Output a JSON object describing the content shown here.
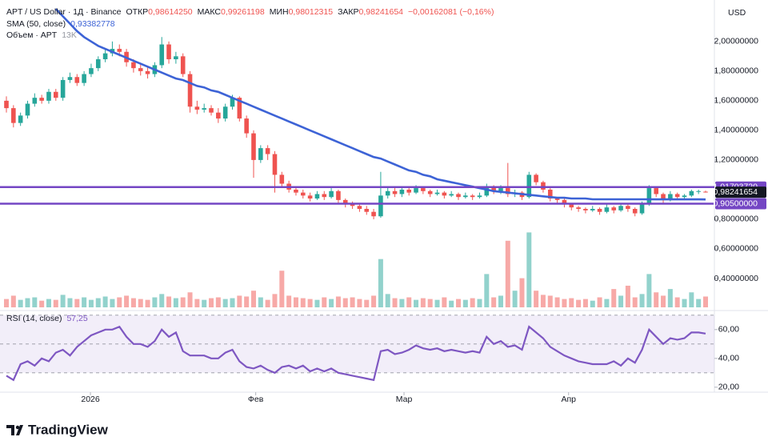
{
  "brand": "TradingView",
  "chart_data": [
    {
      "type": "candlestick",
      "title": "APT / US Dollar · 1Д · Binance",
      "ohlc_labels": [
        {
          "name": "ОТКР",
          "value": "0,98614250"
        },
        {
          "name": "МАКС",
          "value": "0,99261198"
        },
        {
          "name": "МИН",
          "value": "0,98012315"
        },
        {
          "name": "ЗАКР",
          "value": "0,98241654"
        }
      ],
      "change_label": "−0,00162081 (−0,16%)",
      "currency": "USD",
      "up_color": "#26a69a",
      "down_color": "#ef5350",
      "ylim": [
        0.2,
        2.28
      ],
      "yticks": [
        {
          "value": 0.4,
          "label": "0,40000000"
        },
        {
          "value": 0.6,
          "label": "0,60000000"
        },
        {
          "value": 0.8,
          "label": "0,80000000"
        },
        {
          "value": 1.2,
          "label": "1,20000000"
        },
        {
          "value": 1.4,
          "label": "1,40000000"
        },
        {
          "value": 1.6,
          "label": "1,60000000"
        },
        {
          "value": 1.8,
          "label": "1,80000000"
        },
        {
          "value": 2.0,
          "label": "2,00000000"
        }
      ],
      "xticks": [
        {
          "value": 11.9,
          "label": "2026"
        },
        {
          "value": 35.3,
          "label": "Фев"
        },
        {
          "value": 56.3,
          "label": "Мар"
        },
        {
          "value": 79.6,
          "label": "Апр"
        }
      ],
      "open": [
        1.6,
        1.55,
        1.45,
        1.5,
        1.58,
        1.62,
        1.6,
        1.66,
        1.62,
        1.74,
        1.76,
        1.72,
        1.78,
        1.82,
        1.88,
        1.92,
        1.95,
        1.93,
        1.86,
        1.82,
        1.8,
        1.78,
        1.84,
        1.98,
        1.88,
        1.9,
        1.78,
        1.56,
        1.54,
        1.55,
        1.52,
        1.48,
        1.56,
        1.62,
        1.48,
        1.38,
        1.2,
        1.28,
        1.24,
        1.1,
        1.04,
        1.0,
        0.98,
        0.96,
        0.94,
        0.97,
        0.95,
        0.99,
        0.93,
        0.9,
        0.89,
        0.87,
        0.85,
        0.82,
        0.96,
        0.99,
        0.97,
        1.0,
        0.98,
        1.01,
        0.99,
        0.97,
        0.98,
        0.96,
        0.97,
        0.95,
        0.96,
        0.95,
        0.96,
        1.02,
        0.99,
        1.01,
        0.97,
        0.98,
        0.95,
        1.1,
        1.05,
        1.0,
        0.94,
        0.93,
        0.9,
        0.88,
        0.87,
        0.86,
        0.87,
        0.85,
        0.88,
        0.86,
        0.89,
        0.87,
        0.84,
        0.9,
        1.01,
        0.97,
        0.93,
        0.97,
        0.95,
        0.96,
        0.99,
        0.9861425
      ],
      "high": [
        1.63,
        1.57,
        1.52,
        1.6,
        1.65,
        1.64,
        1.68,
        1.68,
        1.76,
        1.79,
        1.78,
        1.8,
        1.85,
        1.9,
        1.95,
        2.0,
        1.98,
        1.95,
        1.88,
        1.85,
        1.83,
        1.86,
        2.03,
        2.0,
        1.93,
        1.92,
        1.8,
        1.6,
        1.58,
        1.57,
        1.55,
        1.58,
        1.64,
        1.63,
        1.5,
        1.4,
        1.3,
        1.3,
        1.26,
        1.12,
        1.06,
        1.02,
        1.0,
        0.98,
        0.99,
        0.99,
        1.01,
        1.0,
        0.94,
        0.92,
        0.91,
        0.89,
        0.87,
        1.12,
        1.02,
        1.01,
        1.02,
        1.02,
        1.03,
        1.02,
        1.0,
        1.0,
        0.99,
        0.99,
        0.98,
        0.98,
        0.97,
        0.98,
        1.04,
        1.03,
        1.03,
        1.18,
        1.0,
        0.99,
        1.12,
        1.11,
        1.06,
        1.01,
        0.95,
        0.94,
        0.91,
        0.89,
        0.88,
        0.89,
        0.88,
        0.9,
        0.89,
        0.91,
        0.9,
        0.88,
        0.92,
        1.03,
        1.02,
        0.98,
        0.99,
        0.98,
        0.97,
        1.0,
        1.0,
        0.99261198
      ],
      "low": [
        1.52,
        1.42,
        1.43,
        1.48,
        1.56,
        1.58,
        1.58,
        1.6,
        1.6,
        1.72,
        1.7,
        1.7,
        1.76,
        1.8,
        1.86,
        1.9,
        1.9,
        1.83,
        1.79,
        1.77,
        1.75,
        1.76,
        1.82,
        1.85,
        1.85,
        1.76,
        1.52,
        1.51,
        1.52,
        1.5,
        1.45,
        1.46,
        1.54,
        1.46,
        1.35,
        1.08,
        1.18,
        1.2,
        0.98,
        1.02,
        0.98,
        0.96,
        0.94,
        0.92,
        0.93,
        0.93,
        0.94,
        0.91,
        0.88,
        0.87,
        0.85,
        0.83,
        0.8,
        0.81,
        0.94,
        0.95,
        0.95,
        0.96,
        0.97,
        0.97,
        0.95,
        0.96,
        0.94,
        0.95,
        0.93,
        0.94,
        0.93,
        0.94,
        0.95,
        0.97,
        0.97,
        0.95,
        0.95,
        0.93,
        0.94,
        1.03,
        0.98,
        0.92,
        0.91,
        0.88,
        0.86,
        0.85,
        0.84,
        0.85,
        0.83,
        0.84,
        0.84,
        0.85,
        0.85,
        0.82,
        0.83,
        0.89,
        0.95,
        0.91,
        0.92,
        0.93,
        0.94,
        0.95,
        0.97,
        0.98012315
      ],
      "close": [
        1.55,
        1.45,
        1.5,
        1.58,
        1.62,
        1.6,
        1.66,
        1.62,
        1.74,
        1.76,
        1.72,
        1.78,
        1.82,
        1.88,
        1.92,
        1.95,
        1.93,
        1.86,
        1.82,
        1.8,
        1.78,
        1.84,
        1.98,
        1.88,
        1.9,
        1.78,
        1.56,
        1.54,
        1.55,
        1.52,
        1.48,
        1.56,
        1.62,
        1.48,
        1.38,
        1.2,
        1.28,
        1.24,
        1.1,
        1.04,
        1.0,
        0.98,
        0.96,
        0.94,
        0.97,
        0.95,
        0.99,
        0.93,
        0.9,
        0.89,
        0.87,
        0.85,
        0.82,
        0.96,
        0.99,
        0.97,
        1.0,
        0.98,
        1.01,
        0.99,
        0.97,
        0.98,
        0.96,
        0.97,
        0.95,
        0.96,
        0.95,
        0.96,
        1.02,
        0.99,
        1.01,
        0.97,
        0.98,
        0.95,
        1.1,
        1.05,
        1.0,
        0.94,
        0.93,
        0.9,
        0.88,
        0.87,
        0.86,
        0.87,
        0.85,
        0.88,
        0.86,
        0.89,
        0.87,
        0.84,
        0.9,
        1.01,
        0.97,
        0.93,
        0.97,
        0.95,
        0.96,
        0.99,
        0.99,
        0.98241654
      ],
      "sma": {
        "name": "SMA (50, close)",
        "value_label": "0,93382778",
        "color": "#3d63d6",
        "values": [
          null,
          null,
          null,
          null,
          null,
          null,
          null,
          2.22,
          2.17,
          2.12,
          2.07,
          2.03,
          2.0,
          1.97,
          1.95,
          1.93,
          1.91,
          1.89,
          1.87,
          1.85,
          1.83,
          1.81,
          1.79,
          1.77,
          1.75,
          1.74,
          1.72,
          1.7,
          1.69,
          1.67,
          1.66,
          1.64,
          1.62,
          1.6,
          1.58,
          1.56,
          1.54,
          1.52,
          1.5,
          1.48,
          1.46,
          1.44,
          1.42,
          1.4,
          1.38,
          1.36,
          1.34,
          1.32,
          1.3,
          1.28,
          1.26,
          1.24,
          1.22,
          1.21,
          1.19,
          1.17,
          1.15,
          1.13,
          1.12,
          1.1,
          1.09,
          1.07,
          1.06,
          1.05,
          1.04,
          1.03,
          1.02,
          1.01,
          1.0,
          0.99,
          0.985,
          0.98,
          0.975,
          0.97,
          0.965,
          0.96,
          0.955,
          0.95,
          0.945,
          0.945,
          0.94,
          0.94,
          0.94,
          0.935,
          0.935,
          0.935,
          0.935,
          0.935,
          0.935,
          0.935,
          0.935,
          0.935,
          0.934,
          0.934,
          0.934,
          0.934,
          0.934,
          0.934,
          0.934,
          0.93382778
        ]
      },
      "levels": [
        {
          "value": 1.0170372,
          "label": "1,01703720",
          "color": "#7446c4"
        },
        {
          "value": 0.905,
          "label": "0,90500000",
          "color": "#7446c4"
        }
      ],
      "last_price": {
        "value": 0.98241654,
        "label": "0,98241654",
        "color": "#131722"
      }
    },
    {
      "type": "bar",
      "name": "Объем · APT",
      "value_label": "13K",
      "ylim": [
        0,
        100
      ],
      "opacity": 0.5,
      "values": [
        10,
        14,
        9,
        11,
        12,
        8,
        10,
        9,
        15,
        11,
        10,
        12,
        9,
        11,
        13,
        10,
        12,
        14,
        11,
        10,
        9,
        12,
        16,
        13,
        11,
        12,
        18,
        10,
        9,
        11,
        12,
        10,
        11,
        14,
        13,
        20,
        12,
        9,
        16,
        44,
        14,
        12,
        11,
        10,
        9,
        12,
        10,
        13,
        11,
        12,
        10,
        9,
        14,
        58,
        16,
        11,
        10,
        12,
        9,
        11,
        10,
        9,
        12,
        8,
        10,
        9,
        11,
        10,
        40,
        12,
        14,
        80,
        20,
        35,
        90,
        20,
        15,
        14,
        12,
        10,
        11,
        9,
        10,
        8,
        12,
        10,
        22,
        14,
        26,
        12,
        16,
        40,
        18,
        14,
        22,
        12,
        10,
        18,
        10,
        13
      ]
    },
    {
      "type": "line",
      "name": "RSI (14, close)",
      "value_label": "57,25",
      "color": "#7e57c2",
      "band_color": "#7e57c2",
      "ylim": [
        18,
        71
      ],
      "bands": [
        30,
        50,
        70
      ],
      "yticks": [
        {
          "value": 20,
          "label": "20,00"
        },
        {
          "value": 40,
          "label": "40,00"
        },
        {
          "value": 60,
          "label": "60,00"
        }
      ],
      "values": [
        28,
        25,
        36,
        38,
        35,
        40,
        38,
        44,
        46,
        42,
        48,
        52,
        56,
        58,
        60,
        60,
        62,
        55,
        50,
        50,
        48,
        52,
        60,
        55,
        58,
        45,
        42,
        42,
        42,
        40,
        40,
        44,
        46,
        38,
        34,
        33,
        35,
        32,
        30,
        34,
        35,
        33,
        35,
        31,
        33,
        31,
        33,
        30,
        29,
        28,
        27,
        26,
        25,
        45,
        46,
        43,
        44,
        46,
        49,
        47,
        46,
        47,
        45,
        46,
        45,
        44,
        45,
        44,
        55,
        50,
        52,
        48,
        49,
        46,
        62,
        58,
        54,
        48,
        45,
        42,
        40,
        38,
        37,
        36,
        36,
        36,
        38,
        35,
        40,
        37,
        46,
        60,
        55,
        50,
        54,
        53,
        54,
        58,
        58,
        57.25
      ]
    }
  ]
}
